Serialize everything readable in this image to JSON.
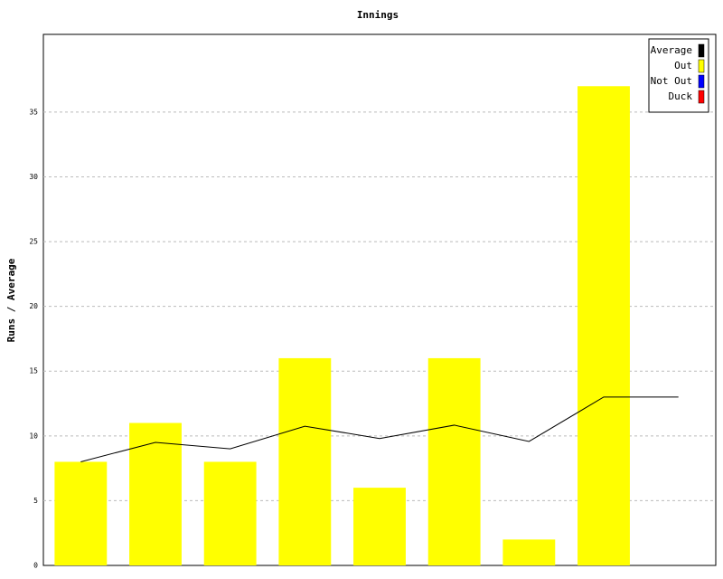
{
  "chart_data": {
    "type": "bar",
    "title": "Innings",
    "y_label": "Runs / Average",
    "categories": [
      null,
      null,
      null,
      null,
      null,
      null,
      null,
      null,
      null
    ],
    "series": [
      {
        "name": "Average",
        "color": "#000000",
        "type": "line",
        "values": [
          8,
          9.5,
          9,
          10.75,
          9.8,
          10.83,
          9.57,
          13,
          13
        ]
      },
      {
        "name": "Out",
        "color": "#ffff00",
        "type": "bar",
        "values": [
          8,
          11,
          8,
          16,
          6,
          16,
          2,
          37,
          null
        ]
      },
      {
        "name": "Not Out",
        "color": "#0000ff",
        "type": "bar",
        "values": [
          null,
          null,
          null,
          null,
          null,
          null,
          null,
          null,
          null
        ]
      },
      {
        "name": "Duck",
        "color": "#ff0000",
        "type": "bar",
        "values": [
          null,
          null,
          null,
          null,
          null,
          null,
          null,
          null,
          null
        ]
      }
    ],
    "ylim": [
      0,
      41
    ],
    "yticks": [
      0,
      5,
      10,
      15,
      20,
      25,
      30,
      35
    ],
    "grid": true,
    "legend": "top-right"
  }
}
